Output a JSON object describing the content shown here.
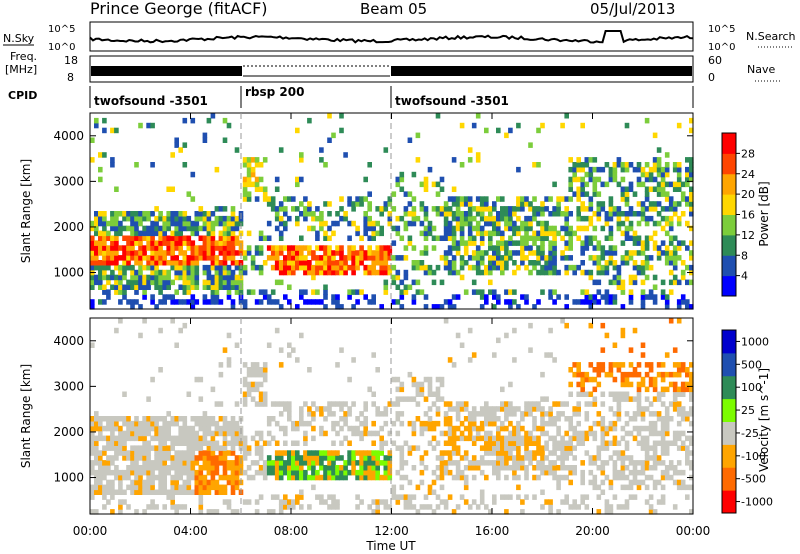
{
  "header": {
    "station": "Prince George (fitACF)",
    "beam": "Beam 05",
    "date": "05/Jul/2013"
  },
  "top_panel": {
    "left_label": "N.Sky",
    "left_ticks": [
      "10^5",
      "10^0"
    ],
    "right_ticks": [
      "10^5",
      "10^0"
    ],
    "right_label": "N.Search"
  },
  "freq_panel": {
    "left_label_1": "Freq.",
    "left_label_2": "[MHz]",
    "left_ticks": [
      "18",
      "8"
    ],
    "right_ticks": [
      "60",
      "0"
    ],
    "right_label": "Nave"
  },
  "cpid": {
    "label": "CPID",
    "segments": [
      {
        "name": "twofsound -3501",
        "start_hour": 0,
        "end_hour": 6
      },
      {
        "name": "rbsp 200",
        "start_hour": 6,
        "end_hour": 12
      },
      {
        "name": "twofsound -3501",
        "start_hour": 12,
        "end_hour": 24
      }
    ]
  },
  "x_axis": {
    "label": "Time UT",
    "tick_labels": [
      "00:00",
      "04:00",
      "08:00",
      "12:00",
      "16:00",
      "20:00",
      "00:00"
    ]
  },
  "colors": {
    "power": [
      "#0000ff",
      "#1f4fb0",
      "#2e8b57",
      "#7ccd3b",
      "#ffd700",
      "#ffa500",
      "#ff4500",
      "#ff0000"
    ],
    "velocity": [
      "#ff0000",
      "#ff6a00",
      "#ffa500",
      "#c8c8c0",
      "#7cfc00",
      "#2e8b57",
      "#1f4fb0",
      "#0000cd"
    ]
  },
  "chart_data": [
    {
      "type": "heatmap",
      "title": "Power",
      "ylabel": "Slant Range [km]",
      "ylim": [
        200,
        4500
      ],
      "y_ticks": [
        "1000",
        "2000",
        "3000",
        "4000"
      ],
      "xlim_hours": [
        0,
        24
      ],
      "colorbar": {
        "label": "Power [dB]",
        "ticks": [
          "4",
          "8",
          "12",
          "16",
          "20",
          "24",
          "28"
        ],
        "range": [
          0,
          30
        ]
      },
      "features": [
        {
          "desc": "strong band",
          "hours": [
            0,
            6
          ],
          "range_km": [
            1100,
            1900
          ],
          "value_db": 26
        },
        {
          "desc": "broad scatter",
          "hours": [
            0,
            24
          ],
          "range_km": [
            400,
            3200
          ],
          "value_db": 12
        },
        {
          "desc": "rbsp patch",
          "hours": [
            7,
            12
          ],
          "range_km": [
            900,
            1500
          ],
          "value_db": 24
        }
      ]
    },
    {
      "type": "heatmap",
      "title": "Velocity",
      "ylabel": "Slant Range [km]",
      "ylim": [
        200,
        4500
      ],
      "y_ticks": [
        "1000",
        "2000",
        "3000",
        "4000"
      ],
      "xlim_hours": [
        0,
        24
      ],
      "colorbar": {
        "label": "Velocity [m s^-1]",
        "ticks": [
          "1000",
          "500",
          "100",
          "25",
          "-25",
          "-100",
          "-500",
          "-1000"
        ]
      },
      "features": [
        {
          "desc": "ground scatter",
          "hours": [
            0,
            24
          ],
          "range_km": [
            600,
            2600
          ],
          "value_ms": 0
        },
        {
          "desc": "mixed flow",
          "hours": [
            7,
            12
          ],
          "range_km": [
            900,
            1500
          ],
          "value_ms": 300
        }
      ]
    }
  ]
}
